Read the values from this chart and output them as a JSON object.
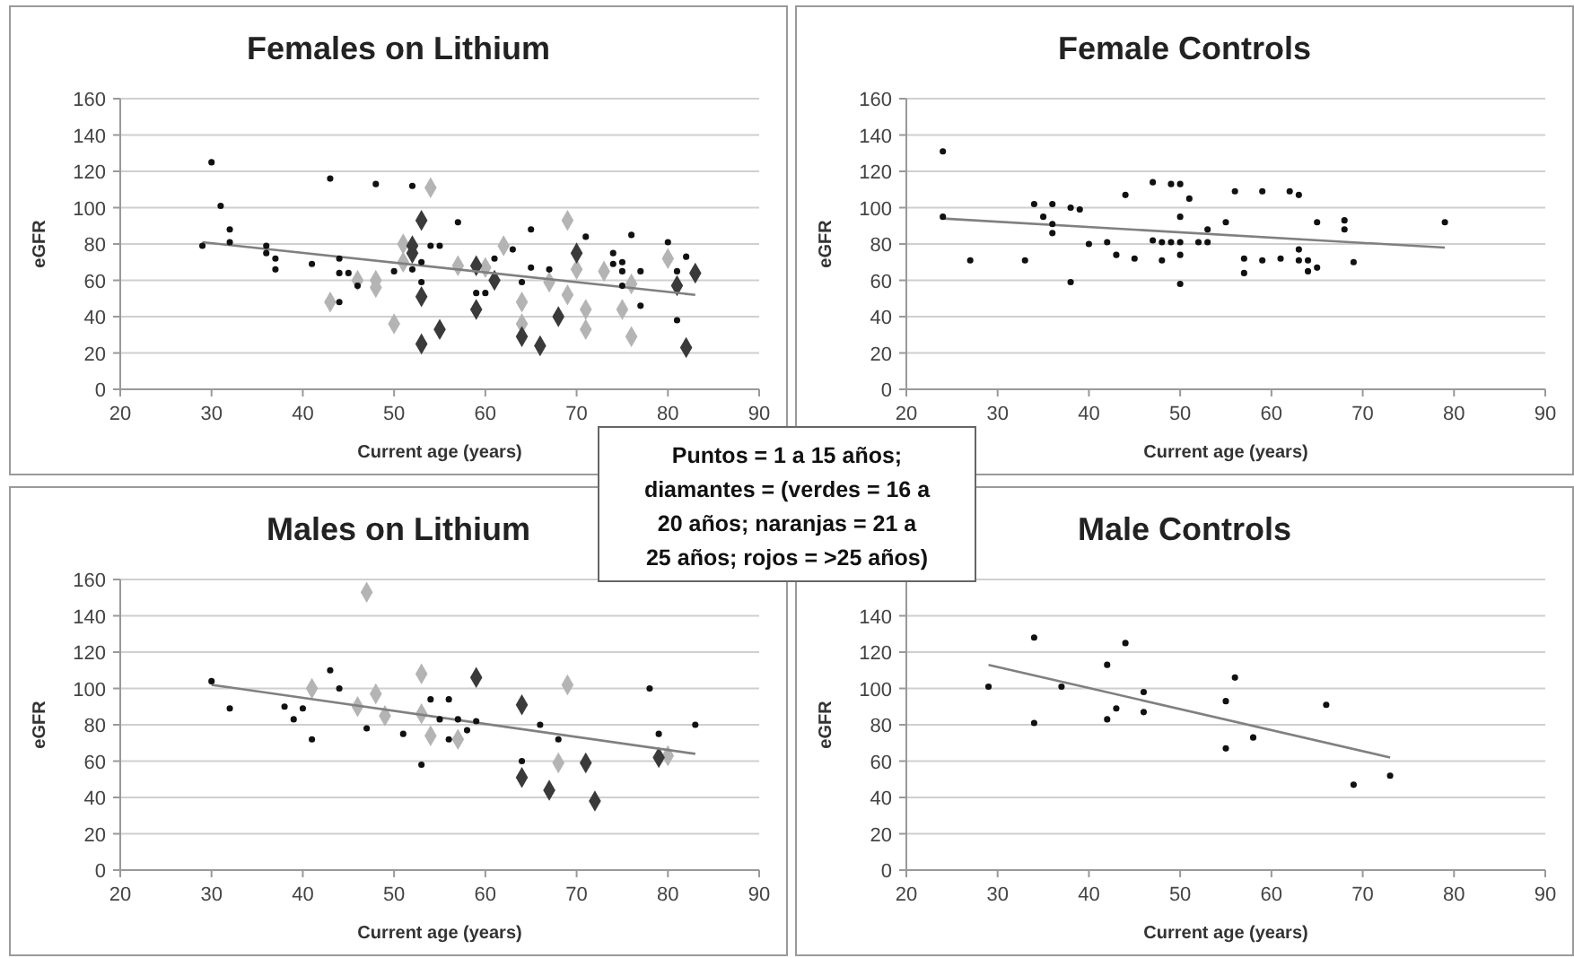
{
  "chart_data": [
    {
      "type": "scatter",
      "title": "Females on Lithium",
      "xlabel": "Current age (years)",
      "ylabel": "eGFR",
      "xlim": [
        20,
        90
      ],
      "xticks": [
        20,
        30,
        40,
        50,
        60,
        70,
        80,
        90
      ],
      "ylim": [
        0,
        160
      ],
      "yticks": [
        0,
        20,
        40,
        60,
        80,
        100,
        120,
        140,
        160
      ],
      "grid": "y",
      "series": [
        {
          "color": "#111111",
          "marker": "circle",
          "x": [
            29,
            30,
            31,
            32,
            32,
            36,
            36,
            37,
            37,
            41,
            43,
            44,
            44,
            45,
            44,
            46,
            48,
            50,
            52,
            52,
            53,
            53,
            54,
            55,
            57,
            59,
            60,
            61,
            63,
            64,
            65,
            65,
            67,
            71,
            74,
            74,
            75,
            75,
            75,
            76,
            77,
            77,
            80,
            81,
            81,
            82
          ],
          "values": [
            79,
            125,
            101,
            88,
            81,
            79,
            75,
            72,
            66,
            69,
            116,
            72,
            64,
            64,
            48,
            57,
            113,
            65,
            112,
            66,
            70,
            59,
            79,
            79,
            92,
            53,
            53,
            72,
            77,
            59,
            88,
            67,
            66,
            84,
            75,
            69,
            70,
            65,
            57,
            85,
            65,
            46,
            81,
            65,
            38,
            73
          ]
        },
        {
          "color": "#b4b4b4",
          "marker": "diamond",
          "x": [
            43,
            46,
            48,
            48,
            50,
            51,
            51,
            54,
            57,
            60,
            62,
            64,
            64,
            67,
            69,
            69,
            70,
            71,
            71,
            73,
            75,
            76,
            76,
            80
          ],
          "values": [
            48,
            60,
            60,
            56,
            36,
            80,
            70,
            111,
            68,
            67,
            79,
            48,
            36,
            59,
            93,
            52,
            66,
            44,
            33,
            65,
            44,
            58,
            29,
            72
          ]
        },
        {
          "color": "#3a3a3a",
          "marker": "diamond",
          "x": [
            53,
            53,
            53,
            52,
            52,
            55,
            59,
            59,
            61,
            64,
            66,
            68,
            70,
            81,
            82,
            83
          ],
          "values": [
            93,
            51,
            25,
            79,
            75,
            33,
            68,
            44,
            60,
            29,
            24,
            40,
            75,
            57,
            23,
            64
          ]
        },
        {
          "type": "line",
          "color": "#808080",
          "marker": "none",
          "x": [
            29,
            83
          ],
          "values": [
            81,
            52
          ]
        }
      ]
    },
    {
      "type": "scatter",
      "title": "Female Controls",
      "xlabel": "Current age (years)",
      "ylabel": "eGFR",
      "xlim": [
        20,
        90
      ],
      "xticks": [
        20,
        30,
        40,
        50,
        60,
        70,
        80,
        90
      ],
      "ylim": [
        0,
        160
      ],
      "yticks": [
        0,
        20,
        40,
        60,
        80,
        100,
        120,
        140,
        160
      ],
      "grid": "y",
      "series": [
        {
          "color": "#111111",
          "marker": "circle",
          "x": [
            24,
            24,
            27,
            33,
            34,
            35,
            36,
            36,
            36,
            38,
            38,
            39,
            40,
            42,
            43,
            44,
            45,
            47,
            47,
            48,
            48,
            49,
            49,
            50,
            50,
            50,
            50,
            50,
            51,
            52,
            53,
            53,
            55,
            56,
            57,
            57,
            59,
            59,
            61,
            62,
            63,
            63,
            63,
            64,
            64,
            65,
            65,
            68,
            68,
            69,
            79
          ],
          "values": [
            131,
            95,
            71,
            71,
            102,
            95,
            102,
            91,
            86,
            100,
            59,
            99,
            80,
            81,
            74,
            107,
            72,
            114,
            82,
            81,
            71,
            113,
            81,
            113,
            95,
            81,
            74,
            58,
            105,
            81,
            88,
            81,
            92,
            109,
            72,
            64,
            109,
            71,
            72,
            109,
            107,
            77,
            71,
            71,
            65,
            92,
            67,
            93,
            88,
            70,
            92
          ]
        },
        {
          "type": "line",
          "color": "#808080",
          "marker": "none",
          "x": [
            24,
            79
          ],
          "values": [
            94,
            78
          ]
        }
      ]
    },
    {
      "type": "scatter",
      "title": "Males on Lithium",
      "xlabel": "Current age (years)",
      "ylabel": "eGFR",
      "xlim": [
        20,
        90
      ],
      "xticks": [
        20,
        30,
        40,
        50,
        60,
        70,
        80,
        90
      ],
      "ylim": [
        0,
        160
      ],
      "yticks": [
        0,
        20,
        40,
        60,
        80,
        100,
        120,
        140,
        160
      ],
      "grid": "y",
      "series": [
        {
          "color": "#111111",
          "marker": "circle",
          "x": [
            30,
            32,
            38,
            39,
            40,
            41,
            43,
            44,
            47,
            51,
            53,
            54,
            55,
            56,
            56,
            57,
            58,
            59,
            64,
            66,
            68,
            78,
            79,
            83
          ],
          "values": [
            104,
            89,
            90,
            83,
            89,
            72,
            110,
            100,
            78,
            75,
            58,
            94,
            83,
            94,
            72,
            83,
            77,
            82,
            60,
            80,
            72,
            100,
            75,
            80
          ]
        },
        {
          "color": "#b4b4b4",
          "marker": "diamond",
          "x": [
            41,
            46,
            47,
            48,
            49,
            53,
            53,
            54,
            57,
            68,
            69,
            80
          ],
          "values": [
            100,
            90,
            153,
            97,
            85,
            108,
            86,
            74,
            72,
            59,
            102,
            63
          ]
        },
        {
          "color": "#3a3a3a",
          "marker": "diamond",
          "x": [
            59,
            64,
            64,
            67,
            71,
            72,
            79
          ],
          "values": [
            106,
            91,
            51,
            44,
            59,
            38,
            62
          ]
        },
        {
          "type": "line",
          "color": "#808080",
          "marker": "none",
          "x": [
            30,
            83
          ],
          "values": [
            102,
            64
          ]
        }
      ]
    },
    {
      "type": "scatter",
      "title": "Male Controls",
      "xlabel": "Current age (years)",
      "ylabel": "eGFR",
      "xlim": [
        20,
        90
      ],
      "xticks": [
        20,
        30,
        40,
        50,
        60,
        70,
        80,
        90
      ],
      "ylim": [
        0,
        160
      ],
      "yticks": [
        0,
        20,
        40,
        60,
        80,
        100,
        120,
        140,
        {
          "value": 160,
          "label": null
        }
      ],
      "grid": "y",
      "series": [
        {
          "color": "#111111",
          "marker": "circle",
          "x": [
            29,
            34,
            34,
            37,
            42,
            42,
            43,
            44,
            46,
            46,
            55,
            55,
            56,
            58,
            66,
            69,
            73
          ],
          "values": [
            101,
            128,
            81,
            101,
            113,
            83,
            89,
            125,
            98,
            87,
            93,
            67,
            106,
            73,
            91,
            47,
            52
          ]
        },
        {
          "type": "line",
          "color": "#808080",
          "marker": "none",
          "x": [
            29,
            73
          ],
          "values": [
            113,
            62
          ]
        }
      ]
    },
    {
      "type": "other",
      "annotations": [
        "Puntos = 1 a 15 años; diamantes = (verdes = 16 a 20 años; naranjas = 21 a 25 años; rojos = >25 años)"
      ]
    }
  ]
}
